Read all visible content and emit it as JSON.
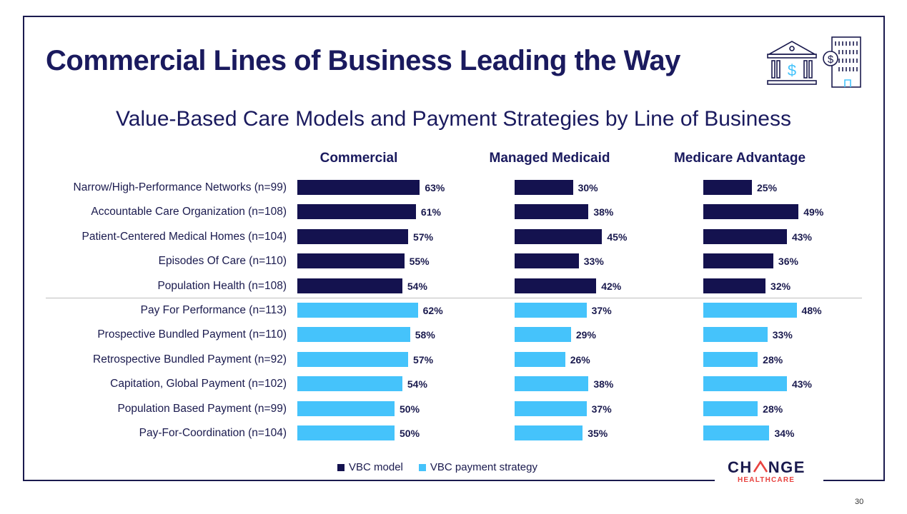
{
  "slide": {
    "title": "Commercial Lines of Business Leading the Way",
    "page_number": "30"
  },
  "logo": {
    "name_pre": "CH",
    "name_post": "NGE",
    "tagline": "HEALTHCARE",
    "tagline_color": "#e8423f"
  },
  "icons": [
    "bank-building-icon",
    "office-building-icon"
  ],
  "colors": {
    "vbc_model": "#14124f",
    "vbc_payment_strategy": "#45c3fb",
    "text": "#1a1a5e"
  },
  "chart_data": {
    "type": "bar",
    "orientation": "horizontal",
    "title": "Value-Based Care Models and Payment Strategies by Line of Business",
    "categories": [
      "Narrow/High-Performance Networks (n=99)",
      "Accountable Care Organization (n=108)",
      "Patient-Centered Medical Homes (n=104)",
      "Episodes Of Care (n=110)",
      "Population Health (n=108)",
      "Pay For Performance (n=113)",
      "Prospective Bundled Payment (n=110)",
      "Retrospective Bundled Payment (n=92)",
      "Capitation, Global Payment (n=102)",
      "Population Based Payment (n=99)",
      "Pay-For-Coordination (n=104)"
    ],
    "category_group": [
      "VBC model",
      "VBC model",
      "VBC model",
      "VBC model",
      "VBC model",
      "VBC payment strategy",
      "VBC payment strategy",
      "VBC payment strategy",
      "VBC payment strategy",
      "VBC payment strategy",
      "VBC payment strategy"
    ],
    "series": [
      {
        "name": "Commercial",
        "values": [
          63,
          61,
          57,
          55,
          54,
          62,
          58,
          57,
          54,
          50,
          50
        ]
      },
      {
        "name": "Managed Medicaid",
        "values": [
          30,
          38,
          45,
          33,
          42,
          37,
          29,
          26,
          38,
          37,
          35
        ]
      },
      {
        "name": "Medicare Advantage",
        "values": [
          25,
          49,
          43,
          36,
          32,
          48,
          33,
          28,
          43,
          28,
          34
        ]
      }
    ],
    "value_suffix": "%",
    "legend": {
      "position": "bottom",
      "items": [
        {
          "label": "VBC model",
          "color": "#14124f"
        },
        {
          "label": "VBC payment strategy",
          "color": "#45c3fb"
        }
      ]
    },
    "grid": false
  }
}
